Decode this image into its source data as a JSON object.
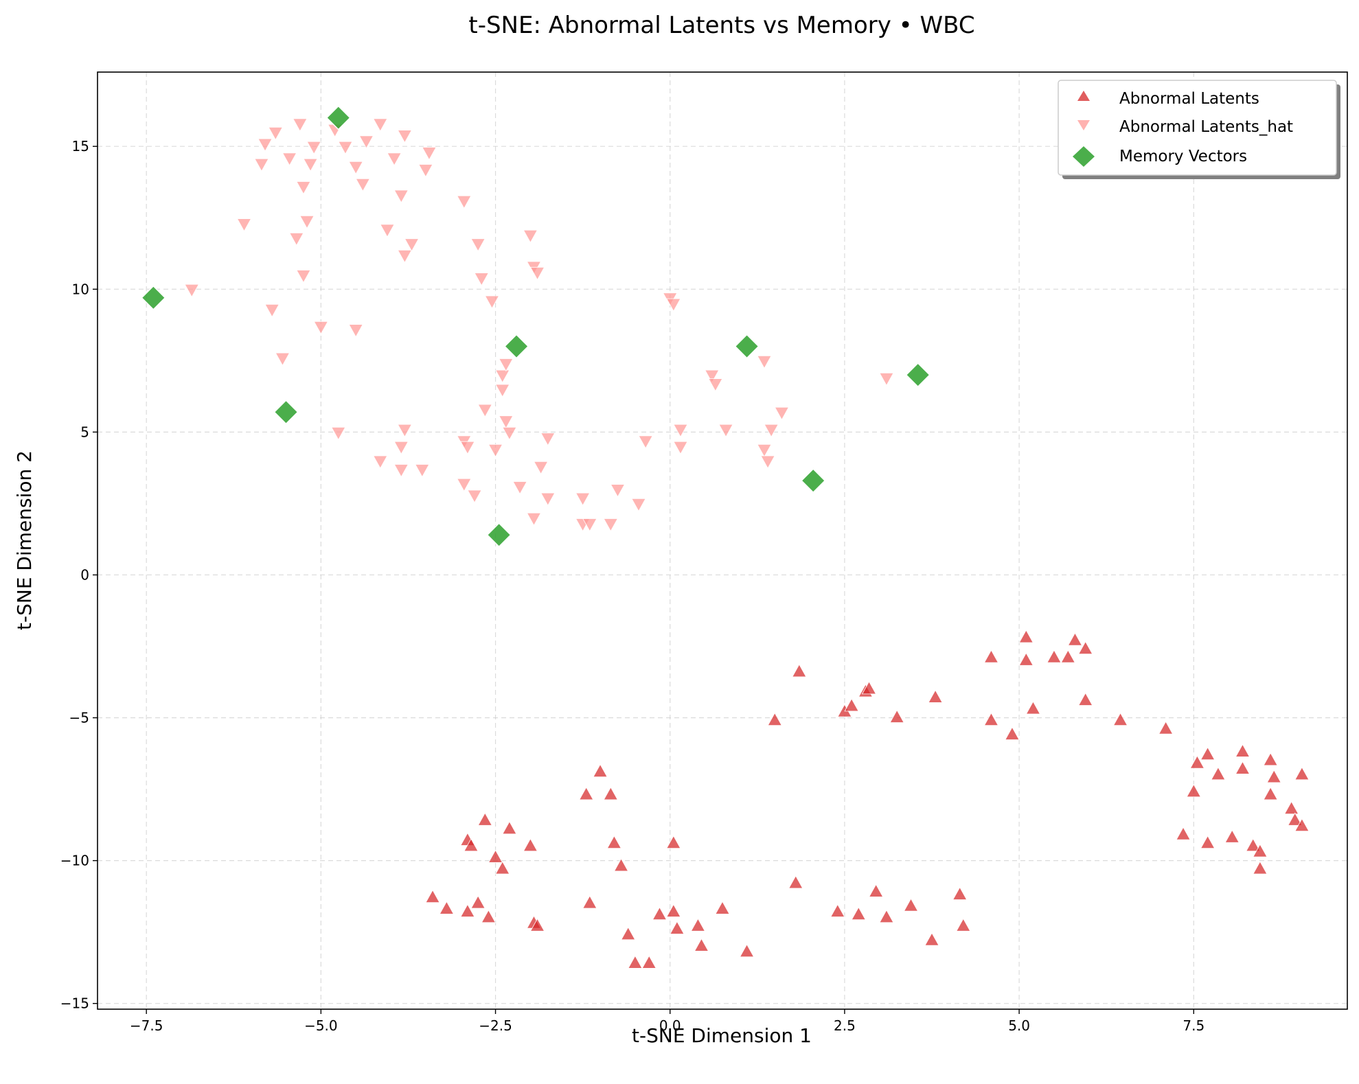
{
  "chart_data": {
    "type": "scatter",
    "title": "t-SNE: Abnormal Latents vs Memory • WBC",
    "xlabel": "t-SNE Dimension 1",
    "ylabel": "t-SNE Dimension 2",
    "xlim": [
      -8.2,
      9.7
    ],
    "ylim": [
      -15.2,
      17.6
    ],
    "xticks": [
      -7.5,
      -5.0,
      -2.5,
      0.0,
      2.5,
      5.0,
      7.5
    ],
    "xtick_labels": [
      "−7.5",
      "−5.0",
      "−2.5",
      "0.0",
      "2.5",
      "5.0",
      "7.5"
    ],
    "yticks": [
      -15,
      -10,
      -5,
      0,
      5,
      10,
      15
    ],
    "ytick_labels": [
      "−15",
      "−10",
      "−5",
      "0",
      "5",
      "10",
      "15"
    ],
    "grid": true,
    "legend_position": "top-right",
    "series": [
      {
        "name": "Abnormal Latents",
        "marker": "triangle-up",
        "color": "#d62728",
        "points": [
          [
            -3.4,
            -11.3
          ],
          [
            -3.2,
            -11.7
          ],
          [
            -2.9,
            -11.8
          ],
          [
            -2.9,
            -9.3
          ],
          [
            -2.85,
            -9.5
          ],
          [
            -2.75,
            -11.5
          ],
          [
            -2.65,
            -8.6
          ],
          [
            -2.6,
            -12.0
          ],
          [
            -2.5,
            -9.9
          ],
          [
            -2.4,
            -10.3
          ],
          [
            -2.3,
            -8.9
          ],
          [
            -2.0,
            -9.5
          ],
          [
            -1.95,
            -12.2
          ],
          [
            -1.9,
            -12.3
          ],
          [
            -1.2,
            -7.7
          ],
          [
            -1.15,
            -11.5
          ],
          [
            -1.0,
            -6.9
          ],
          [
            -0.85,
            -7.7
          ],
          [
            -0.8,
            -9.4
          ],
          [
            -0.7,
            -10.2
          ],
          [
            -0.6,
            -12.6
          ],
          [
            -0.5,
            -13.6
          ],
          [
            -0.3,
            -13.6
          ],
          [
            -0.15,
            -11.9
          ],
          [
            0.05,
            -9.4
          ],
          [
            0.05,
            -11.8
          ],
          [
            0.1,
            -12.4
          ],
          [
            0.4,
            -12.3
          ],
          [
            0.45,
            -13.0
          ],
          [
            0.75,
            -11.7
          ],
          [
            1.1,
            -13.2
          ],
          [
            1.5,
            -5.1
          ],
          [
            1.8,
            -10.8
          ],
          [
            1.85,
            -3.4
          ],
          [
            2.4,
            -11.8
          ],
          [
            2.5,
            -4.8
          ],
          [
            2.6,
            -4.6
          ],
          [
            2.7,
            -11.9
          ],
          [
            2.8,
            -4.1
          ],
          [
            2.85,
            -4.0
          ],
          [
            2.95,
            -11.1
          ],
          [
            3.1,
            -12.0
          ],
          [
            3.25,
            -5.0
          ],
          [
            3.45,
            -11.6
          ],
          [
            3.75,
            -12.8
          ],
          [
            3.8,
            -4.3
          ],
          [
            4.15,
            -11.2
          ],
          [
            4.2,
            -12.3
          ],
          [
            4.6,
            -5.1
          ],
          [
            4.6,
            -2.9
          ],
          [
            4.9,
            -5.6
          ],
          [
            5.1,
            -2.2
          ],
          [
            5.1,
            -3.0
          ],
          [
            5.2,
            -4.7
          ],
          [
            5.5,
            -2.9
          ],
          [
            5.7,
            -2.9
          ],
          [
            5.8,
            -2.3
          ],
          [
            5.95,
            -2.6
          ],
          [
            5.95,
            -4.4
          ],
          [
            6.45,
            -5.1
          ],
          [
            7.1,
            -5.4
          ],
          [
            7.35,
            -9.1
          ],
          [
            7.5,
            -7.6
          ],
          [
            7.55,
            -6.6
          ],
          [
            7.7,
            -6.3
          ],
          [
            7.7,
            -9.4
          ],
          [
            7.85,
            -7.0
          ],
          [
            8.05,
            -9.2
          ],
          [
            8.2,
            -6.8
          ],
          [
            8.2,
            -6.2
          ],
          [
            8.35,
            -9.5
          ],
          [
            8.45,
            -9.7
          ],
          [
            8.45,
            -10.3
          ],
          [
            8.6,
            -6.5
          ],
          [
            8.6,
            -7.7
          ],
          [
            8.65,
            -7.1
          ],
          [
            8.9,
            -8.2
          ],
          [
            8.95,
            -8.6
          ],
          [
            9.05,
            -7.0
          ],
          [
            9.05,
            -8.8
          ]
        ]
      },
      {
        "name": "Abnormal Latents_hat",
        "marker": "triangle-down",
        "color": "#ff9896",
        "points": [
          [
            -6.85,
            10.0
          ],
          [
            -6.1,
            12.3
          ],
          [
            -5.85,
            14.4
          ],
          [
            -5.8,
            15.1
          ],
          [
            -5.7,
            9.3
          ],
          [
            -5.65,
            15.5
          ],
          [
            -5.55,
            7.6
          ],
          [
            -5.45,
            14.6
          ],
          [
            -5.35,
            11.8
          ],
          [
            -5.3,
            15.8
          ],
          [
            -5.25,
            10.5
          ],
          [
            -5.25,
            13.6
          ],
          [
            -5.2,
            12.4
          ],
          [
            -5.15,
            14.4
          ],
          [
            -5.1,
            15.0
          ],
          [
            -5.0,
            8.7
          ],
          [
            -4.8,
            15.6
          ],
          [
            -4.75,
            5.0
          ],
          [
            -4.65,
            15.0
          ],
          [
            -4.5,
            8.6
          ],
          [
            -4.5,
            14.3
          ],
          [
            -4.4,
            13.7
          ],
          [
            -4.35,
            15.2
          ],
          [
            -4.15,
            4.0
          ],
          [
            -4.15,
            15.8
          ],
          [
            -4.05,
            12.1
          ],
          [
            -3.95,
            14.6
          ],
          [
            -3.85,
            4.5
          ],
          [
            -3.85,
            13.3
          ],
          [
            -3.85,
            3.7
          ],
          [
            -3.8,
            5.1
          ],
          [
            -3.8,
            11.2
          ],
          [
            -3.8,
            15.4
          ],
          [
            -3.7,
            11.6
          ],
          [
            -3.55,
            3.7
          ],
          [
            -3.5,
            14.2
          ],
          [
            -3.45,
            14.8
          ],
          [
            -2.95,
            13.1
          ],
          [
            -2.95,
            3.2
          ],
          [
            -2.95,
            4.7
          ],
          [
            -2.9,
            4.5
          ],
          [
            -2.8,
            2.8
          ],
          [
            -2.75,
            11.6
          ],
          [
            -2.7,
            10.4
          ],
          [
            -2.65,
            5.8
          ],
          [
            -2.55,
            9.6
          ],
          [
            -2.5,
            4.4
          ],
          [
            -2.4,
            6.5
          ],
          [
            -2.4,
            7.0
          ],
          [
            -2.35,
            7.4
          ],
          [
            -2.35,
            5.4
          ],
          [
            -2.3,
            5.0
          ],
          [
            -2.15,
            3.1
          ],
          [
            -2.0,
            11.9
          ],
          [
            -1.95,
            2.0
          ],
          [
            -1.95,
            10.8
          ],
          [
            -1.9,
            10.6
          ],
          [
            -1.85,
            3.8
          ],
          [
            -1.75,
            2.7
          ],
          [
            -1.75,
            4.8
          ],
          [
            -1.25,
            1.8
          ],
          [
            -1.25,
            2.7
          ],
          [
            -1.15,
            1.8
          ],
          [
            -0.85,
            1.8
          ],
          [
            -0.75,
            3.0
          ],
          [
            -0.45,
            2.5
          ],
          [
            -0.35,
            4.7
          ],
          [
            0.0,
            9.7
          ],
          [
            0.05,
            9.5
          ],
          [
            0.15,
            4.5
          ],
          [
            0.15,
            5.1
          ],
          [
            0.6,
            7.0
          ],
          [
            0.65,
            6.7
          ],
          [
            0.8,
            5.1
          ],
          [
            1.35,
            7.5
          ],
          [
            1.35,
            4.4
          ],
          [
            1.4,
            4.0
          ],
          [
            1.45,
            5.1
          ],
          [
            1.6,
            5.7
          ],
          [
            3.1,
            6.9
          ]
        ]
      },
      {
        "name": "Memory Vectors",
        "marker": "diamond",
        "color": "#2ca02c",
        "points": [
          [
            -7.4,
            9.7
          ],
          [
            -5.5,
            5.7
          ],
          [
            -4.75,
            16.0
          ],
          [
            -2.2,
            8.0
          ],
          [
            -2.45,
            1.4
          ],
          [
            1.1,
            8.0
          ],
          [
            2.05,
            3.3
          ],
          [
            3.55,
            7.0
          ]
        ]
      }
    ]
  }
}
